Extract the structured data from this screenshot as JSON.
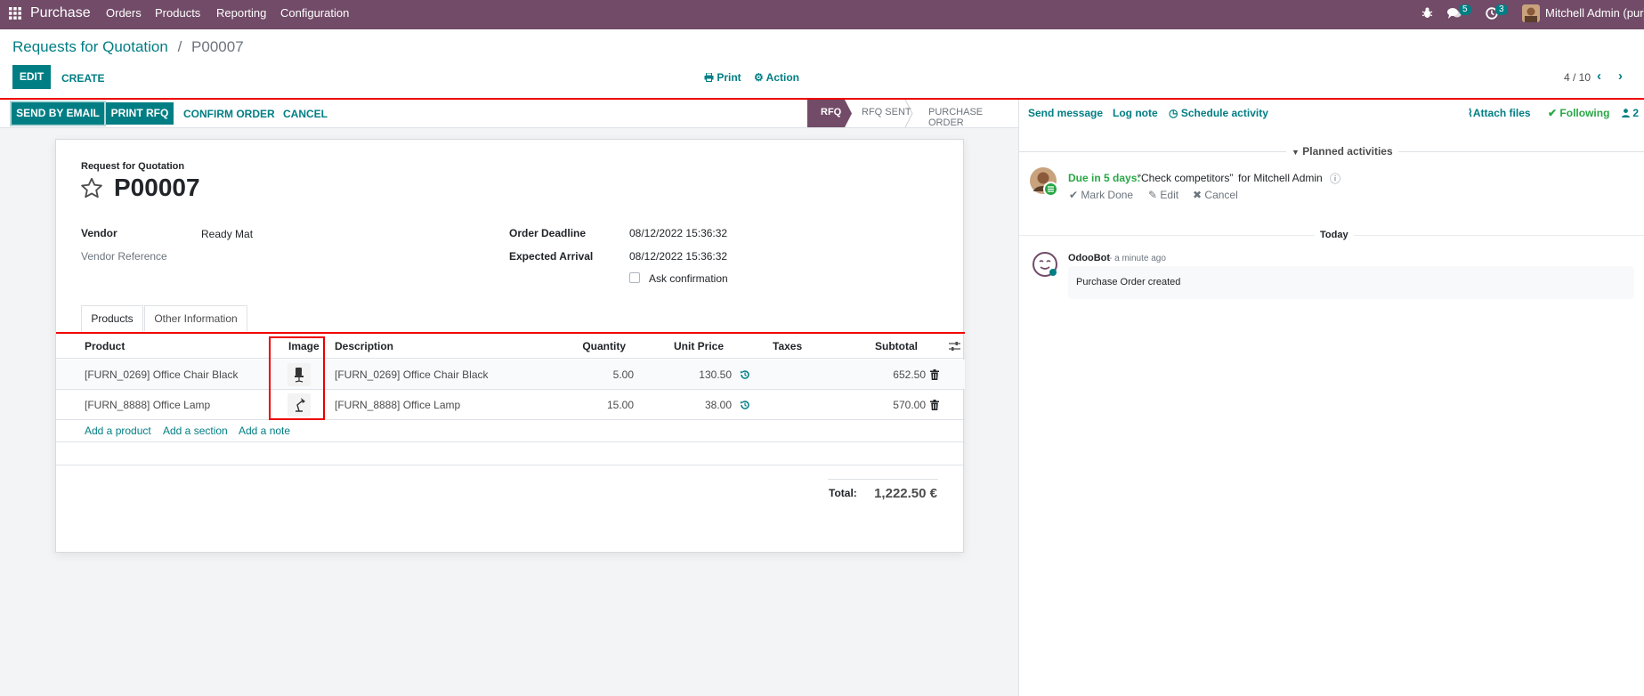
{
  "navbar": {
    "app_name": "Purchase",
    "menu": [
      "Orders",
      "Products",
      "Reporting",
      "Configuration"
    ],
    "messages_count": "5",
    "activities_count": "3",
    "user": "Mitchell Admin (pur)"
  },
  "breadcrumb": {
    "parent": "Requests for Quotation",
    "separator": "/",
    "current": "P00007"
  },
  "toolbar": {
    "edit": "EDIT",
    "create": "CREATE",
    "print": "Print",
    "action": "Action",
    "pager": "4 / 10"
  },
  "statusbar": {
    "buttons": [
      "SEND BY EMAIL",
      "PRINT RFQ",
      "CONFIRM ORDER",
      "CANCEL"
    ],
    "stages": [
      "RFQ",
      "RFQ SENT",
      "PURCHASE ORDER"
    ],
    "active_stage": "RFQ"
  },
  "form": {
    "subtitle": "Request for Quotation",
    "name": "P00007",
    "vendor_label": "Vendor",
    "vendor_value": "Ready Mat",
    "vendor_ref_label": "Vendor Reference",
    "order_deadline_label": "Order Deadline",
    "order_deadline_value": "08/12/2022 15:36:32",
    "expected_arrival_label": "Expected Arrival",
    "expected_arrival_value": "08/12/2022 15:36:32",
    "ask_confirmation_label": "Ask confirmation",
    "tabs": [
      "Products",
      "Other Information"
    ],
    "active_tab": "Products"
  },
  "lines": {
    "headers": {
      "product": "Product",
      "image": "Image",
      "description": "Description",
      "quantity": "Quantity",
      "unit_price": "Unit Price",
      "taxes": "Taxes",
      "subtotal": "Subtotal"
    },
    "rows": [
      {
        "product": "[FURN_0269] Office Chair Black",
        "description": "[FURN_0269] Office Chair Black",
        "quantity": "5.00",
        "unit_price": "130.50",
        "taxes": "",
        "subtotal": "652.50"
      },
      {
        "product": "[FURN_8888] Office Lamp",
        "description": "[FURN_8888] Office Lamp",
        "quantity": "15.00",
        "unit_price": "38.00",
        "taxes": "",
        "subtotal": "570.00"
      }
    ],
    "add_product": "Add a product",
    "add_section": "Add a section",
    "add_note": "Add a note",
    "total_label": "Total:",
    "total_value": "1,222.50 €"
  },
  "chatter": {
    "send_message": "Send message",
    "log_note": "Log note",
    "schedule_activity": "Schedule activity",
    "attach_files": "Attach files",
    "following": "Following",
    "followers_count": "2",
    "planned_activities": "Planned activities",
    "activity": {
      "due": "Due in 5 days:",
      "summary": "“Check competitors”",
      "for": "for Mitchell Admin",
      "mark_done": "Mark Done",
      "edit": "Edit",
      "cancel": "Cancel"
    },
    "today": "Today",
    "message": {
      "author": "OdooBot",
      "time": "- a minute ago",
      "body": "Purchase Order created"
    }
  },
  "colors": {
    "brand": "#714b67",
    "accent": "#017e84",
    "highlight_border": "#e00000"
  }
}
